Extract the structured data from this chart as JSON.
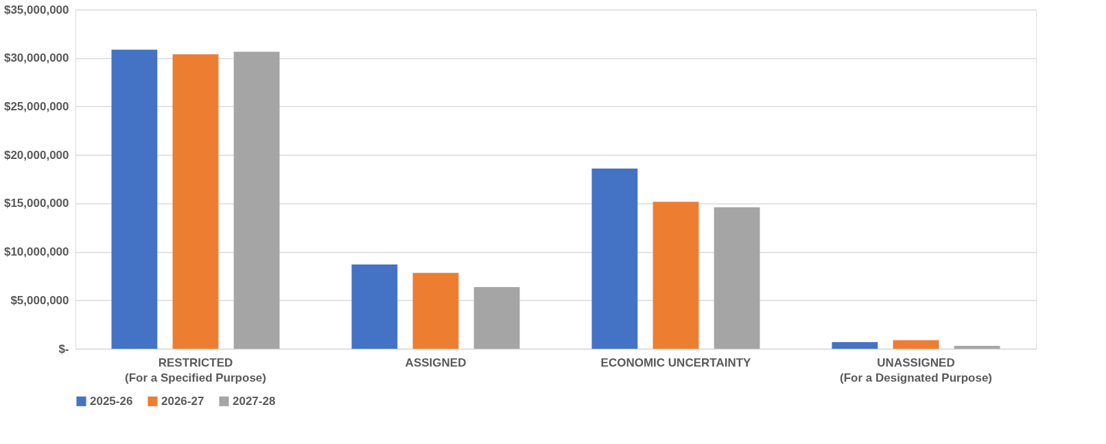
{
  "chart_data": {
    "type": "bar",
    "categories": [
      "RESTRICTED\n(For a Specified Purpose)",
      "ASSIGNED",
      "ECONOMIC UNCERTAINTY",
      "UNASSIGNED\n(For a Designated Purpose)"
    ],
    "series": [
      {
        "name": "2025-26",
        "color": "#4472c4",
        "values": [
          30870000,
          8690000,
          18590000,
          690000
        ]
      },
      {
        "name": "2026-27",
        "color": "#ed7d31",
        "values": [
          30390000,
          7830000,
          15160000,
          890000
        ]
      },
      {
        "name": "2027-28",
        "color": "#a5a5a5",
        "values": [
          30660000,
          6360000,
          14600000,
          300000
        ]
      }
    ],
    "ylim": [
      0,
      35000000
    ],
    "yticks": [
      {
        "value": 0,
        "label": "$-"
      },
      {
        "value": 5000000,
        "label": "$5,000,000"
      },
      {
        "value": 10000000,
        "label": "$10,000,000"
      },
      {
        "value": 15000000,
        "label": "$15,000,000"
      },
      {
        "value": 20000000,
        "label": "$20,000,000"
      },
      {
        "value": 25000000,
        "label": "$25,000,000"
      },
      {
        "value": 30000000,
        "label": "$30,000,000"
      },
      {
        "value": 35000000,
        "label": "$35,000,000"
      }
    ],
    "grid": "y",
    "legend": "bottom"
  }
}
